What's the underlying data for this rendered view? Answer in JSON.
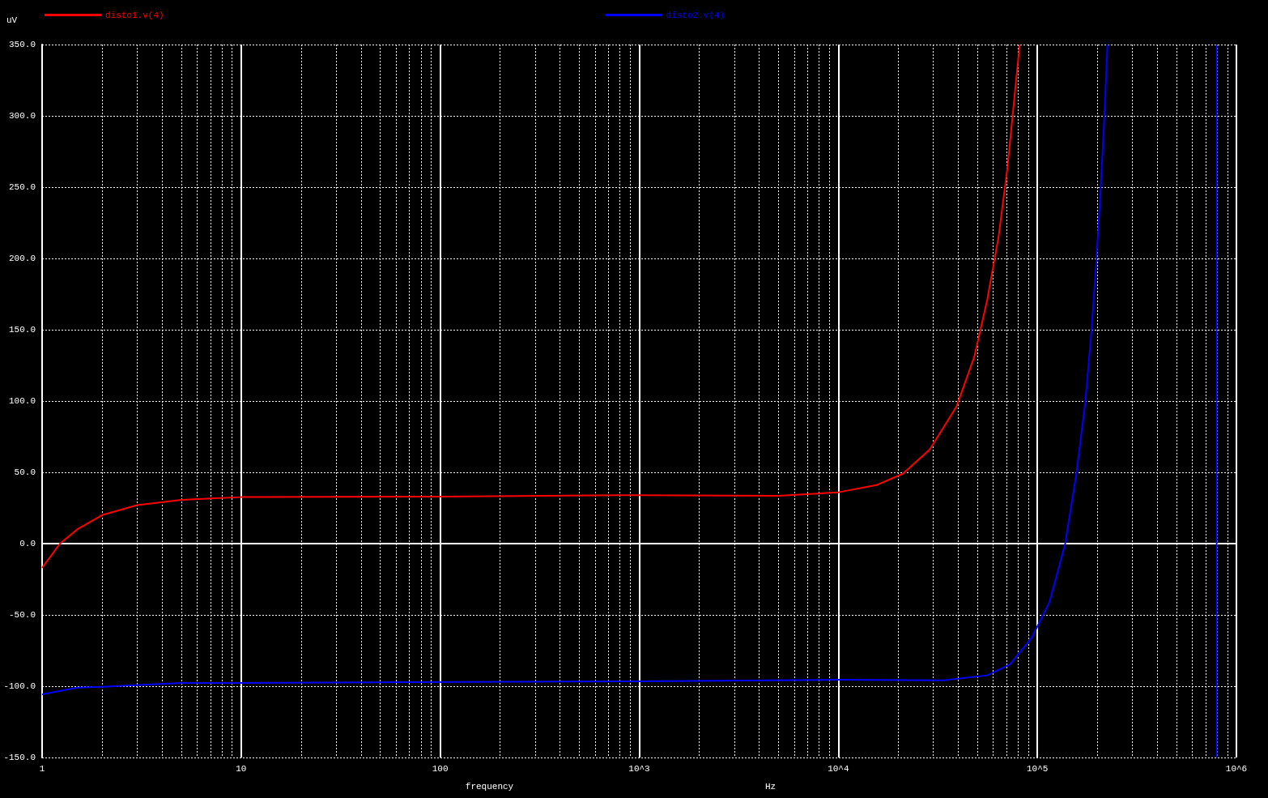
{
  "chart_data": {
    "type": "line",
    "ylabel": "uV",
    "xlabel": "frequency",
    "annotations": [
      "Hz"
    ],
    "log": "x",
    "grid": true,
    "legend": "top",
    "marker": "none",
    "line_style": "solid",
    "xlim": [
      1,
      1000000
    ],
    "xticks": [
      1,
      10,
      100,
      {
        "value": 1000,
        "label": "10^3"
      },
      {
        "value": 10000,
        "label": "10^4"
      },
      {
        "value": 100000,
        "label": "10^5"
      },
      {
        "value": 1000000,
        "label": "10^6"
      }
    ],
    "ylim": [
      -150,
      350
    ],
    "yticks": [
      {
        "value": -150,
        "label": "-150.0"
      },
      {
        "value": -100,
        "label": "-100.0"
      },
      {
        "value": -50,
        "label": "-50.0"
      },
      {
        "value": 0,
        "label": "0.0"
      },
      {
        "value": 50,
        "label": "50.0"
      },
      {
        "value": 100,
        "label": "100.0"
      },
      {
        "value": 150,
        "label": "150.0"
      },
      {
        "value": 200,
        "label": "200.0"
      },
      {
        "value": 250,
        "label": "250.0"
      },
      {
        "value": 300,
        "label": "300.0"
      },
      {
        "value": 350,
        "label": "350.0"
      }
    ],
    "series": [
      {
        "name": "disto1.v(4)",
        "color": "#ff0000",
        "x": [
          1,
          1.23,
          1.5,
          2,
          3,
          5,
          10,
          100,
          1000,
          5000,
          10000,
          15500,
          21100,
          28800,
          39200,
          48200,
          56000,
          63800,
          70800,
          77300,
          81500
        ],
        "values": [
          -17,
          0,
          10,
          20,
          27,
          30.7,
          32.6,
          33,
          34,
          33.5,
          36,
          41,
          49,
          66,
          96,
          131,
          171,
          215,
          264,
          318,
          350
        ]
      },
      {
        "name": "disto2.v(4)",
        "color": "#0000ff",
        "x": [
          1,
          1.5,
          2,
          5,
          10,
          1000,
          10000,
          33600,
          56000,
          72800,
          93800,
          115000,
          138000,
          157000,
          174000,
          187000,
          198000,
          208000,
          217000,
          225000,
          500000,
          796000,
          796000
        ],
        "values": [
          -105.7,
          -101,
          -100.4,
          -97.7,
          -97.7,
          -96.6,
          -95.5,
          -95.9,
          -92.4,
          -84.7,
          -65.9,
          -41,
          0,
          49,
          99,
          149,
          199,
          249,
          299,
          350,
          null,
          350,
          -150
        ]
      }
    ]
  }
}
